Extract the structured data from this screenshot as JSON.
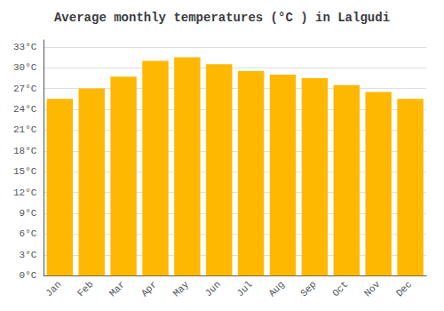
{
  "chart_data": {
    "type": "bar",
    "title": "Average monthly temperatures (°C ) in Lalgudi",
    "categories": [
      "Jan",
      "Feb",
      "Mar",
      "Apr",
      "May",
      "Jun",
      "Jul",
      "Aug",
      "Sep",
      "Oct",
      "Nov",
      "Dec"
    ],
    "values": [
      25.5,
      27.0,
      28.7,
      31.0,
      31.5,
      30.5,
      29.5,
      29.0,
      28.5,
      27.5,
      26.5,
      25.5
    ],
    "color": "#FFB800",
    "ylim": [
      0,
      34
    ],
    "yticks": [
      {
        "value": 0,
        "label": "0°C"
      },
      {
        "value": 3,
        "label": "3°C"
      },
      {
        "value": 6,
        "label": "6°C"
      },
      {
        "value": 9,
        "label": "9°C"
      },
      {
        "value": 12,
        "label": "12°C"
      },
      {
        "value": 15,
        "label": "15°C"
      },
      {
        "value": 18,
        "label": "18°C"
      },
      {
        "value": 21,
        "label": "21°C"
      },
      {
        "value": 24,
        "label": "24°C"
      },
      {
        "value": 27,
        "label": "27°C"
      },
      {
        "value": 30,
        "label": "30°C"
      },
      {
        "value": 33,
        "label": "33°C"
      }
    ],
    "grid": true
  }
}
